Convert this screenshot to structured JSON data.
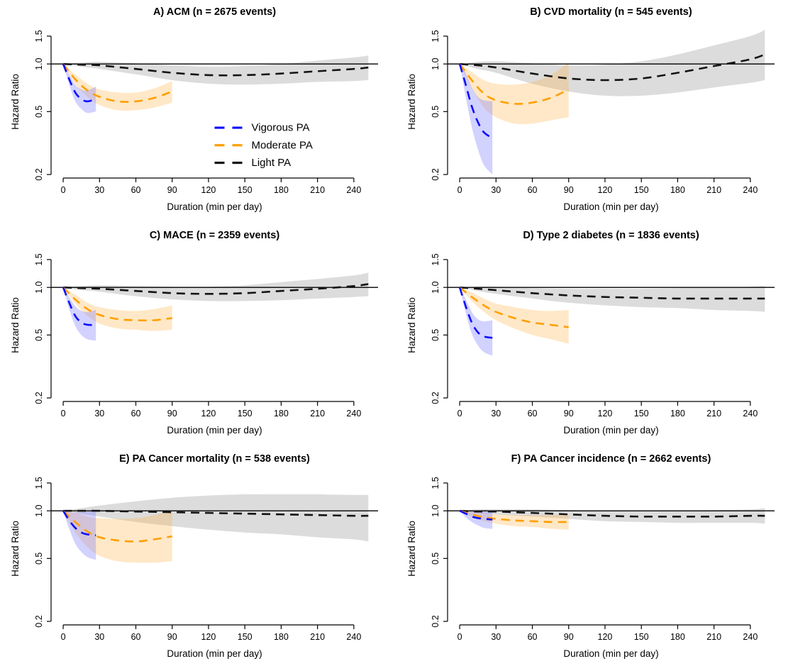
{
  "figure": {
    "background": "#ffffff",
    "series_styles": {
      "Vigorous PA": {
        "color": "#0d0dff",
        "band": "rgba(125,125,255,0.35)"
      },
      "Moderate PA": {
        "color": "#ff9f00",
        "band": "rgba(255,180,70,0.30)"
      },
      "Light PA": {
        "color": "#141414",
        "band": "rgba(130,130,130,0.28)"
      }
    },
    "legend": {
      "shown_in_panel": "A",
      "entries": [
        "Vigorous PA",
        "Moderate PA",
        "Light PA"
      ]
    }
  },
  "chart_data": [
    {
      "id": "A",
      "type": "line",
      "title": "A) ACM (n = 2675 events)",
      "xlabel": "Duration (min per day)",
      "ylabel": "Hazard Ratio",
      "x_ticks": [
        0,
        30,
        60,
        90,
        120,
        150,
        180,
        210,
        240
      ],
      "y_ticks": [
        0.2,
        0.5,
        1.0,
        1.5
      ],
      "xlim": [
        -10,
        260
      ],
      "ylim": [
        0.19,
        1.75
      ],
      "y_scale": "log",
      "reference_line": 1.0,
      "show_legend": true,
      "series": [
        {
          "name": "Vigorous PA",
          "x": [
            0,
            5,
            10,
            15,
            20,
            27
          ],
          "y": [
            1.0,
            0.8,
            0.66,
            0.6,
            0.58,
            0.6
          ],
          "lo": [
            1.0,
            0.74,
            0.58,
            0.52,
            0.49,
            0.5
          ],
          "hi": [
            1.0,
            0.86,
            0.74,
            0.69,
            0.68,
            0.72
          ]
        },
        {
          "name": "Moderate PA",
          "x": [
            0,
            10,
            20,
            30,
            45,
            60,
            75,
            90
          ],
          "y": [
            1.0,
            0.8,
            0.68,
            0.62,
            0.58,
            0.58,
            0.61,
            0.67
          ],
          "lo": [
            1.0,
            0.75,
            0.62,
            0.55,
            0.51,
            0.51,
            0.53,
            0.57
          ],
          "hi": [
            1.0,
            0.86,
            0.75,
            0.69,
            0.66,
            0.66,
            0.7,
            0.78
          ]
        },
        {
          "name": "Light PA",
          "x": [
            0,
            15,
            30,
            60,
            90,
            120,
            150,
            180,
            210,
            240,
            252
          ],
          "y": [
            1.0,
            0.99,
            0.98,
            0.93,
            0.88,
            0.85,
            0.85,
            0.87,
            0.9,
            0.93,
            0.95
          ],
          "lo": [
            1.0,
            0.96,
            0.93,
            0.86,
            0.79,
            0.75,
            0.74,
            0.75,
            0.77,
            0.78,
            0.79
          ],
          "hi": [
            1.0,
            1.02,
            1.03,
            1.01,
            0.98,
            0.96,
            0.97,
            1.0,
            1.05,
            1.1,
            1.13
          ]
        }
      ]
    },
    {
      "id": "B",
      "type": "line",
      "title": "B) CVD mortality (n = 545 events)",
      "xlabel": "Duration (min per day)",
      "ylabel": "Hazard Ratio",
      "x_ticks": [
        0,
        30,
        60,
        90,
        120,
        150,
        180,
        210,
        240
      ],
      "y_ticks": [
        0.2,
        0.5,
        1.0,
        1.5
      ],
      "xlim": [
        -10,
        260
      ],
      "ylim": [
        0.19,
        1.75
      ],
      "y_scale": "log",
      "reference_line": 1.0,
      "show_legend": false,
      "series": [
        {
          "name": "Vigorous PA",
          "x": [
            0,
            5,
            10,
            15,
            20,
            27
          ],
          "y": [
            1.0,
            0.74,
            0.54,
            0.43,
            0.37,
            0.34
          ],
          "lo": [
            1.0,
            0.62,
            0.4,
            0.29,
            0.23,
            0.2
          ],
          "hi": [
            1.0,
            0.87,
            0.71,
            0.62,
            0.59,
            0.58
          ]
        },
        {
          "name": "Moderate PA",
          "x": [
            0,
            10,
            20,
            30,
            45,
            60,
            75,
            90
          ],
          "y": [
            1.0,
            0.79,
            0.65,
            0.59,
            0.56,
            0.57,
            0.61,
            0.69
          ],
          "lo": [
            1.0,
            0.7,
            0.53,
            0.46,
            0.42,
            0.42,
            0.44,
            0.46
          ],
          "hi": [
            1.0,
            0.89,
            0.79,
            0.75,
            0.74,
            0.77,
            0.85,
            1.02
          ]
        },
        {
          "name": "Light PA",
          "x": [
            0,
            15,
            30,
            60,
            90,
            120,
            150,
            180,
            210,
            240,
            252
          ],
          "y": [
            1.0,
            0.98,
            0.95,
            0.87,
            0.81,
            0.79,
            0.81,
            0.88,
            0.97,
            1.07,
            1.15
          ],
          "lo": [
            1.0,
            0.93,
            0.88,
            0.75,
            0.67,
            0.63,
            0.63,
            0.66,
            0.71,
            0.76,
            0.79
          ],
          "hi": [
            1.0,
            1.03,
            1.04,
            1.01,
            0.98,
            0.99,
            1.04,
            1.15,
            1.31,
            1.5,
            1.64
          ]
        }
      ]
    },
    {
      "id": "C",
      "type": "line",
      "title": "C) MACE (n = 2359 events)",
      "xlabel": "Duration (min per day)",
      "ylabel": "Hazard Ratio",
      "x_ticks": [
        0,
        30,
        60,
        90,
        120,
        150,
        180,
        210,
        240
      ],
      "y_ticks": [
        0.2,
        0.5,
        1.0,
        1.5
      ],
      "xlim": [
        -10,
        260
      ],
      "ylim": [
        0.19,
        1.75
      ],
      "y_scale": "log",
      "reference_line": 1.0,
      "show_legend": false,
      "series": [
        {
          "name": "Vigorous PA",
          "x": [
            0,
            5,
            10,
            15,
            20,
            27
          ],
          "y": [
            1.0,
            0.8,
            0.66,
            0.6,
            0.58,
            0.58
          ],
          "lo": [
            1.0,
            0.73,
            0.57,
            0.5,
            0.47,
            0.46
          ],
          "hi": [
            1.0,
            0.87,
            0.76,
            0.71,
            0.7,
            0.72
          ]
        },
        {
          "name": "Moderate PA",
          "x": [
            0,
            10,
            20,
            30,
            45,
            60,
            75,
            90
          ],
          "y": [
            1.0,
            0.84,
            0.73,
            0.67,
            0.63,
            0.62,
            0.62,
            0.64
          ],
          "lo": [
            1.0,
            0.79,
            0.66,
            0.59,
            0.55,
            0.54,
            0.53,
            0.54
          ],
          "hi": [
            1.0,
            0.9,
            0.8,
            0.75,
            0.72,
            0.71,
            0.73,
            0.77
          ]
        },
        {
          "name": "Light PA",
          "x": [
            0,
            15,
            30,
            60,
            90,
            120,
            150,
            180,
            210,
            240,
            252
          ],
          "y": [
            1.0,
            0.99,
            0.98,
            0.95,
            0.92,
            0.91,
            0.92,
            0.95,
            0.98,
            1.02,
            1.05
          ],
          "lo": [
            1.0,
            0.96,
            0.94,
            0.88,
            0.84,
            0.82,
            0.82,
            0.83,
            0.85,
            0.87,
            0.88
          ],
          "hi": [
            1.0,
            1.02,
            1.03,
            1.02,
            1.01,
            1.01,
            1.03,
            1.08,
            1.13,
            1.19,
            1.24
          ]
        }
      ]
    },
    {
      "id": "D",
      "type": "line",
      "title": "D) Type 2 diabetes (n = 1836 events)",
      "xlabel": "Duration (min per day)",
      "ylabel": "Hazard Ratio",
      "x_ticks": [
        0,
        30,
        60,
        90,
        120,
        150,
        180,
        210,
        240
      ],
      "y_ticks": [
        0.2,
        0.5,
        1.0,
        1.5
      ],
      "xlim": [
        -10,
        260
      ],
      "ylim": [
        0.19,
        1.75
      ],
      "y_scale": "log",
      "reference_line": 1.0,
      "show_legend": false,
      "series": [
        {
          "name": "Vigorous PA",
          "x": [
            0,
            5,
            10,
            15,
            20,
            27
          ],
          "y": [
            1.0,
            0.76,
            0.6,
            0.52,
            0.49,
            0.48
          ],
          "lo": [
            1.0,
            0.69,
            0.51,
            0.43,
            0.39,
            0.37
          ],
          "hi": [
            1.0,
            0.84,
            0.7,
            0.63,
            0.61,
            0.62
          ]
        },
        {
          "name": "Moderate PA",
          "x": [
            0,
            10,
            20,
            30,
            45,
            60,
            75,
            90
          ],
          "y": [
            1.0,
            0.87,
            0.77,
            0.7,
            0.64,
            0.6,
            0.58,
            0.56
          ],
          "lo": [
            1.0,
            0.82,
            0.7,
            0.62,
            0.55,
            0.5,
            0.47,
            0.44
          ],
          "hi": [
            1.0,
            0.93,
            0.85,
            0.79,
            0.75,
            0.72,
            0.71,
            0.72
          ]
        },
        {
          "name": "Light PA",
          "x": [
            0,
            15,
            30,
            60,
            90,
            120,
            150,
            180,
            210,
            240,
            252
          ],
          "y": [
            1.0,
            0.98,
            0.96,
            0.92,
            0.89,
            0.87,
            0.86,
            0.85,
            0.85,
            0.85,
            0.85
          ],
          "lo": [
            1.0,
            0.95,
            0.91,
            0.85,
            0.8,
            0.77,
            0.75,
            0.74,
            0.72,
            0.71,
            0.7
          ],
          "hi": [
            1.0,
            1.01,
            1.01,
            0.99,
            0.98,
            0.98,
            0.98,
            0.99,
            1.0,
            1.01,
            1.02
          ]
        }
      ]
    },
    {
      "id": "E",
      "type": "line",
      "title": "E) PA Cancer mortality (n = 538 events)",
      "xlabel": "Duration (min per day)",
      "ylabel": "Hazard Ratio",
      "x_ticks": [
        0,
        30,
        60,
        90,
        120,
        150,
        180,
        210,
        240
      ],
      "y_ticks": [
        0.2,
        0.5,
        1.0,
        1.5
      ],
      "xlim": [
        -10,
        260
      ],
      "ylim": [
        0.19,
        1.75
      ],
      "y_scale": "log",
      "reference_line": 1.0,
      "show_legend": false,
      "series": [
        {
          "name": "Vigorous PA",
          "x": [
            0,
            5,
            10,
            15,
            20,
            27
          ],
          "y": [
            1.0,
            0.87,
            0.78,
            0.73,
            0.71,
            0.7
          ],
          "lo": [
            1.0,
            0.77,
            0.62,
            0.55,
            0.51,
            0.49
          ],
          "hi": [
            1.0,
            0.98,
            0.98,
            0.98,
            0.99,
            1.01
          ]
        },
        {
          "name": "Moderate PA",
          "x": [
            0,
            10,
            20,
            30,
            45,
            60,
            75,
            90
          ],
          "y": [
            1.0,
            0.85,
            0.74,
            0.68,
            0.65,
            0.64,
            0.66,
            0.69
          ],
          "lo": [
            1.0,
            0.73,
            0.59,
            0.52,
            0.48,
            0.47,
            0.47,
            0.48
          ],
          "hi": [
            1.0,
            0.98,
            0.92,
            0.9,
            0.89,
            0.9,
            0.94,
            1.0
          ]
        },
        {
          "name": "Light PA",
          "x": [
            0,
            15,
            30,
            60,
            90,
            120,
            150,
            180,
            210,
            240,
            252
          ],
          "y": [
            1.0,
            1.0,
            1.0,
            0.99,
            0.98,
            0.97,
            0.96,
            0.95,
            0.94,
            0.93,
            0.93
          ],
          "lo": [
            1.0,
            0.96,
            0.92,
            0.85,
            0.8,
            0.76,
            0.73,
            0.71,
            0.68,
            0.66,
            0.64
          ],
          "hi": [
            1.0,
            1.04,
            1.08,
            1.15,
            1.21,
            1.25,
            1.27,
            1.27,
            1.27,
            1.26,
            1.26
          ]
        }
      ]
    },
    {
      "id": "F",
      "type": "line",
      "title": "F) PA Cancer incidence (n = 2662 events)",
      "xlabel": "Duration (min per day)",
      "ylabel": "Hazard Ratio",
      "x_ticks": [
        0,
        30,
        60,
        90,
        120,
        150,
        180,
        210,
        240
      ],
      "y_ticks": [
        0.2,
        0.5,
        1.0,
        1.5
      ],
      "xlim": [
        -10,
        260
      ],
      "ylim": [
        0.19,
        1.75
      ],
      "y_scale": "log",
      "reference_line": 1.0,
      "show_legend": false,
      "series": [
        {
          "name": "Vigorous PA",
          "x": [
            0,
            5,
            10,
            15,
            20,
            27
          ],
          "y": [
            1.0,
            0.96,
            0.92,
            0.9,
            0.89,
            0.88
          ],
          "lo": [
            1.0,
            0.91,
            0.85,
            0.81,
            0.78,
            0.77
          ],
          "hi": [
            1.0,
            1.01,
            1.0,
            1.0,
            1.0,
            1.01
          ]
        },
        {
          "name": "Moderate PA",
          "x": [
            0,
            10,
            20,
            30,
            45,
            60,
            75,
            90
          ],
          "y": [
            1.0,
            0.95,
            0.91,
            0.89,
            0.87,
            0.86,
            0.85,
            0.85
          ],
          "lo": [
            1.0,
            0.91,
            0.86,
            0.83,
            0.8,
            0.79,
            0.77,
            0.76
          ],
          "hi": [
            1.0,
            0.99,
            0.96,
            0.95,
            0.94,
            0.94,
            0.94,
            0.95
          ]
        },
        {
          "name": "Light PA",
          "x": [
            0,
            15,
            30,
            60,
            90,
            120,
            150,
            180,
            210,
            240,
            252
          ],
          "y": [
            1.0,
            0.99,
            0.99,
            0.97,
            0.95,
            0.93,
            0.92,
            0.92,
            0.92,
            0.93,
            0.93
          ],
          "lo": [
            1.0,
            0.97,
            0.95,
            0.92,
            0.89,
            0.86,
            0.85,
            0.84,
            0.84,
            0.84,
            0.83
          ],
          "hi": [
            1.0,
            1.02,
            1.02,
            1.02,
            1.01,
            1.0,
            1.0,
            1.0,
            1.01,
            1.02,
            1.04
          ]
        }
      ]
    }
  ]
}
